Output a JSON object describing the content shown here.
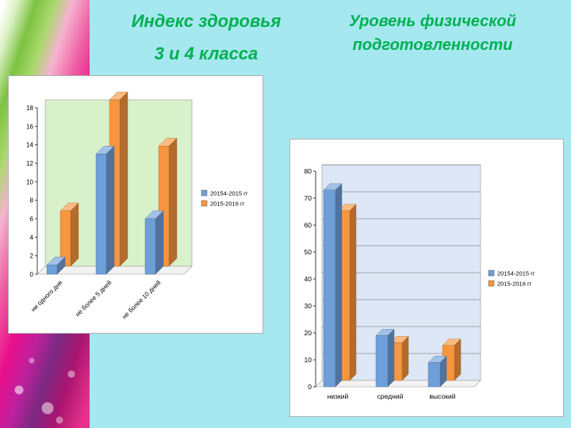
{
  "slide": {
    "background_color": "#a5e8f0",
    "title_color": "#00b050"
  },
  "titles": {
    "left_line1": "Индекс здоровья",
    "left_line2": "3 и 4 класса",
    "right": "Уровень физической подготовленности"
  },
  "chart_data": [
    {
      "type": "bar",
      "style": "3d-column",
      "title": "Индекс здоровья 3 и 4 класса",
      "categories": [
        "ни одного дня",
        "не более 5 дней",
        "не более 10 дней"
      ],
      "series": [
        {
          "name": "20154-2015 гг",
          "color": "#6f9fd8",
          "values": [
            1,
            13,
            6
          ]
        },
        {
          "name": "2015-2016 гг",
          "color": "#f7963f",
          "values": [
            6,
            18,
            13
          ]
        }
      ],
      "ylim": [
        0,
        18
      ],
      "ytick_step": 2,
      "grid": false,
      "legend_position": "right",
      "plot_bg": "#d9f1ca"
    },
    {
      "type": "bar",
      "style": "3d-column",
      "title": "Уровень физической подготовленности",
      "categories": [
        "низкий",
        "средний",
        "высокий"
      ],
      "series": [
        {
          "name": "20154-2015 гг",
          "color": "#6f9fd8",
          "values": [
            73,
            19,
            9
          ]
        },
        {
          "name": "2015-2016 гг",
          "color": "#f7963f",
          "values": [
            63,
            14,
            13
          ]
        }
      ],
      "ylim": [
        0,
        80
      ],
      "ytick_step": 10,
      "grid": true,
      "legend_position": "right",
      "plot_bg": "#dde7f5"
    }
  ]
}
